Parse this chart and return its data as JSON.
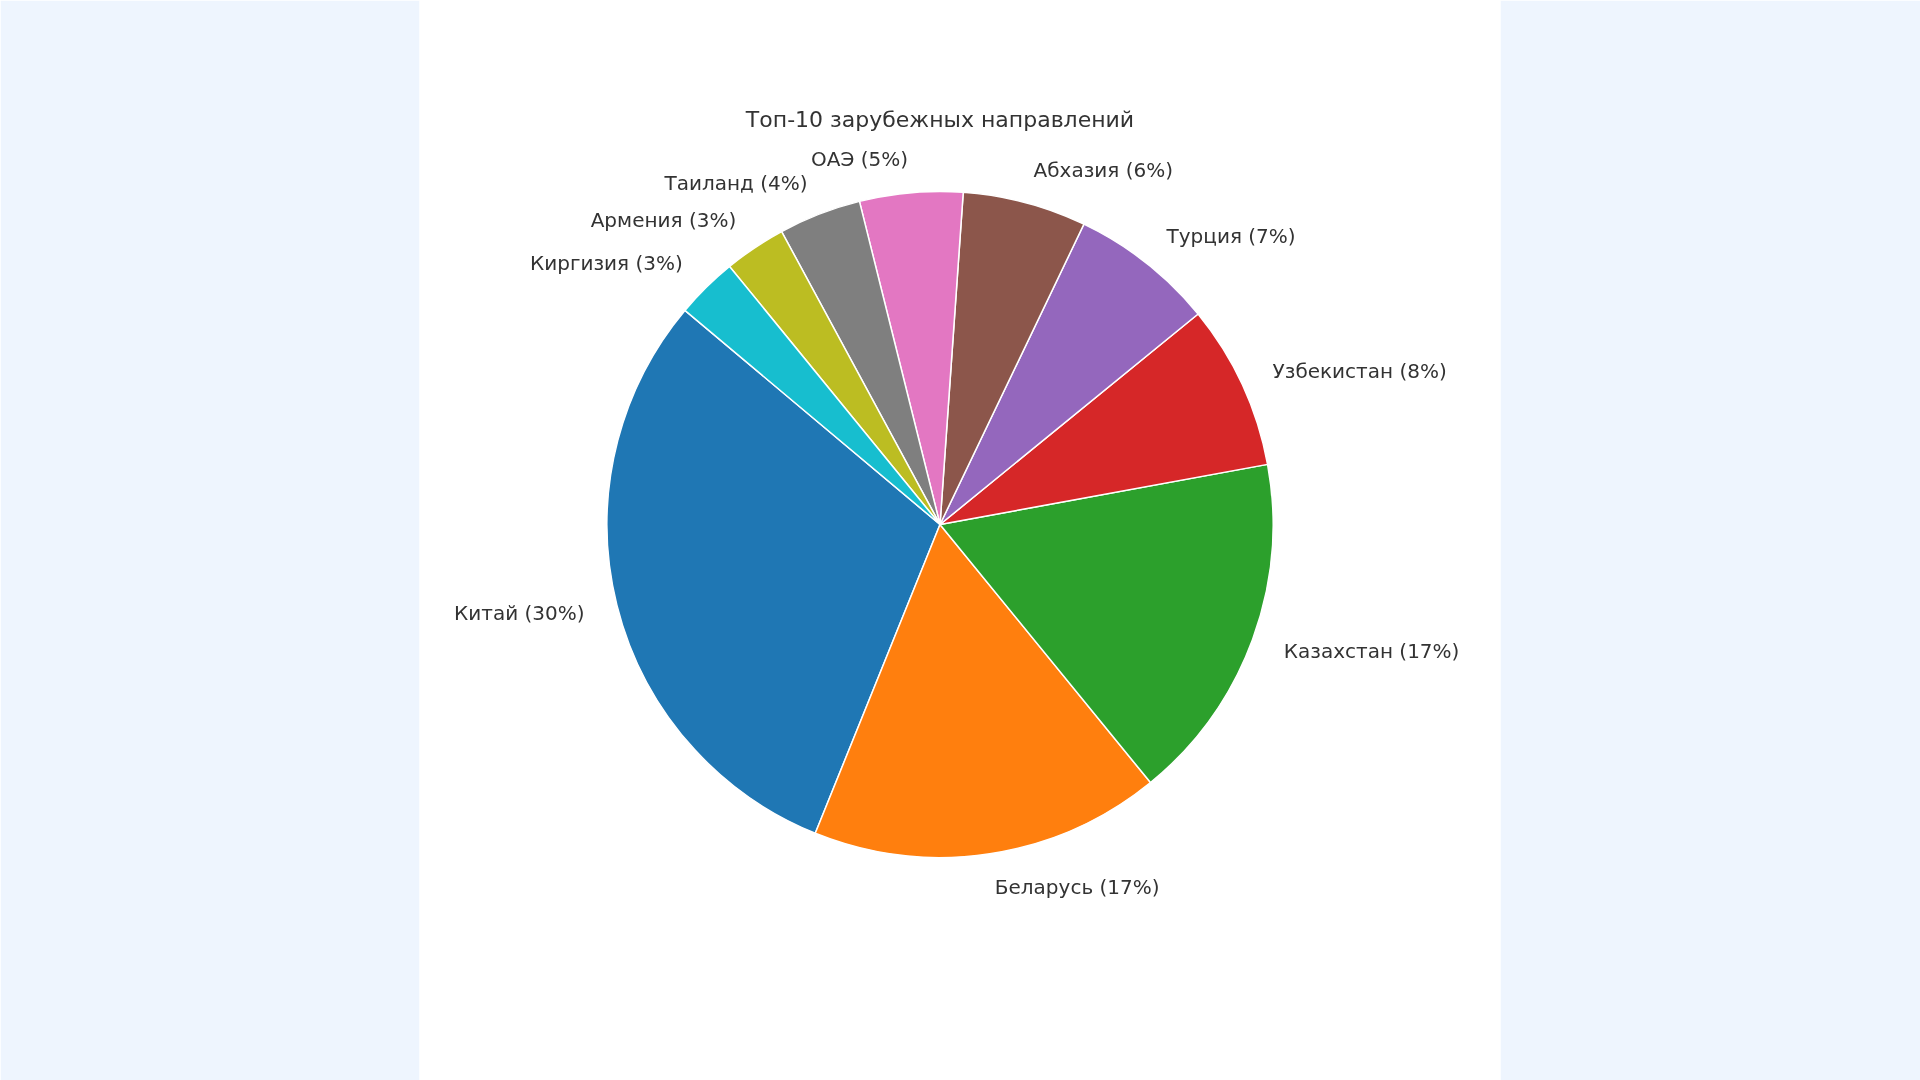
{
  "chart_data": {
    "type": "pie",
    "title": "Топ-10 зарубежных направлений",
    "categories": [
      "Китай",
      "Беларусь",
      "Казахстан",
      "Узбекистан",
      "Турция",
      "Абхазия",
      "ОАЭ",
      "Таиланд",
      "Армения",
      "Киргизия"
    ],
    "values": [
      30,
      17,
      17,
      8,
      7,
      6,
      5,
      4,
      3,
      3
    ],
    "value_labels": [
      "(30%)",
      "(17%)",
      "(17%)",
      "(8%)",
      "(7%)",
      "(6%)",
      "(5%)",
      "(4%)",
      "(3%)",
      "(3%)"
    ],
    "colors": [
      "#1f77b4",
      "#ff7f0e",
      "#2ca02c",
      "#d62728",
      "#9467bd",
      "#8c564b",
      "#e377c2",
      "#7f7f7f",
      "#bcbd22",
      "#17becf"
    ]
  }
}
